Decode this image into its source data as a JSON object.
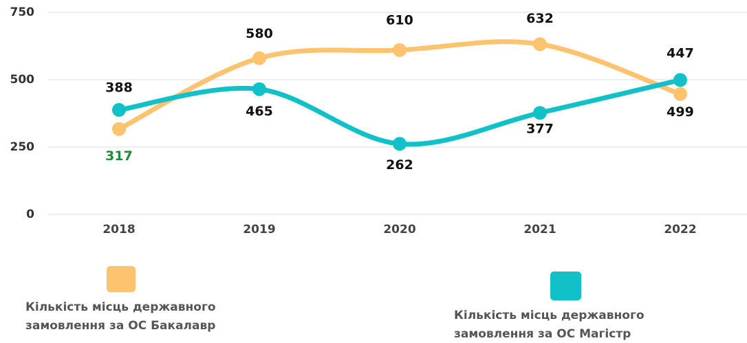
{
  "chart_data": {
    "type": "line",
    "categories": [
      "2018",
      "2019",
      "2020",
      "2021",
      "2022"
    ],
    "series": [
      {
        "name": "Кількість місць державного замовлення за ОС Бакалавр",
        "color": "#fdc36f",
        "values": [
          317,
          580,
          610,
          632,
          447
        ]
      },
      {
        "name": "Кількість місць державного замовлення за ОС Магістр",
        "color": "#12c0c8",
        "values": [
          388,
          465,
          262,
          377,
          499
        ]
      }
    ],
    "ylim": [
      0,
      750
    ],
    "yticks": [
      0,
      250,
      500,
      750
    ],
    "grid": true
  }
}
